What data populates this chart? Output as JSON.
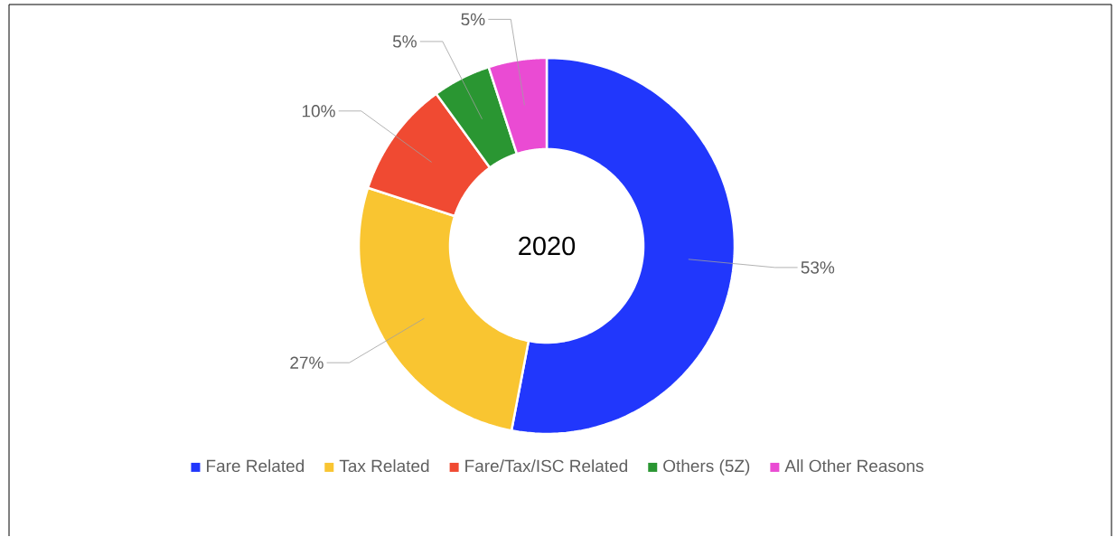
{
  "chart_data": {
    "type": "donut",
    "title": "2020",
    "categories": [
      "Fare Related",
      "Tax Related",
      "Fare/Tax/ISC Related",
      "Others (5Z)",
      "All Other Reasons"
    ],
    "values": [
      53,
      27,
      10,
      5,
      5
    ],
    "colors": [
      "#2137fc",
      "#f9c531",
      "#f04a32",
      "#2a9632",
      "#ea4bd3"
    ],
    "value_labels": [
      "53%",
      "27%",
      "10%",
      "5%",
      "5%"
    ],
    "legend": "bottom"
  }
}
